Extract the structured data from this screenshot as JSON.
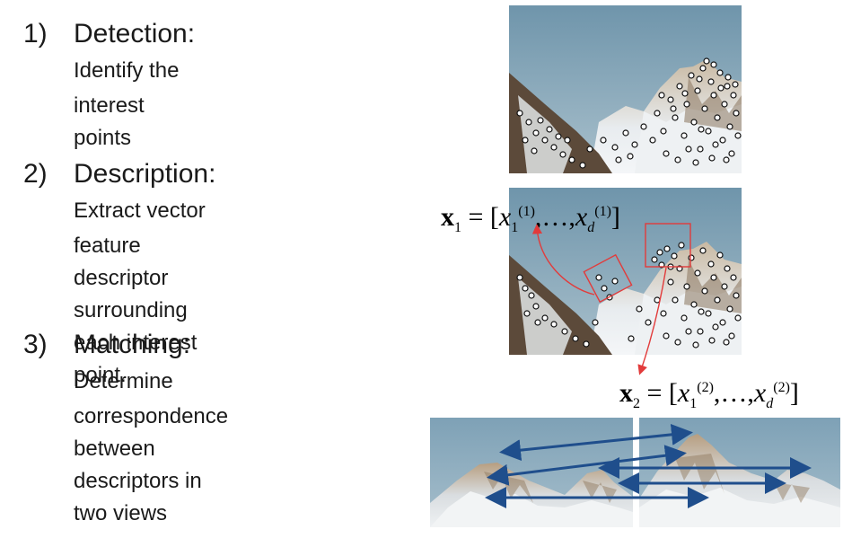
{
  "steps": [
    {
      "number": "1)",
      "title": "Detection",
      "separator": ":",
      "description_lines": [
        "Identify the",
        "interest points"
      ]
    },
    {
      "number": "2)",
      "title": "Description",
      "separator": ":",
      "description_lines": [
        "Extract vector",
        "feature descriptor surrounding",
        "each interest point."
      ]
    },
    {
      "number": "3)",
      "title": "Matching",
      "separator": ":",
      "description_lines": [
        "Determine",
        "correspondence between",
        "descriptors in two views"
      ]
    }
  ],
  "formulas": {
    "x1": {
      "var": "x",
      "index": "1",
      "equals": "=",
      "open": "[",
      "elem": "x",
      "first_sub": "1",
      "sup": "(1)",
      "comma": ",",
      "dots": "…",
      "last_sub": "d",
      "close": "]"
    },
    "x2": {
      "var": "x",
      "index": "2",
      "equals": "=",
      "open": "[",
      "elem": "x",
      "first_sub": "1",
      "sup": "(2)",
      "comma": ",",
      "dots": "…",
      "last_sub": "d",
      "close": "]"
    }
  },
  "colors": {
    "sky": "#86a7b9",
    "snow": "#e4eaee",
    "rock": "#6a5a48",
    "interest_point": "#ffffff",
    "descriptor_box": "#e23b3b",
    "match_arrow": "#1f4e8c"
  }
}
